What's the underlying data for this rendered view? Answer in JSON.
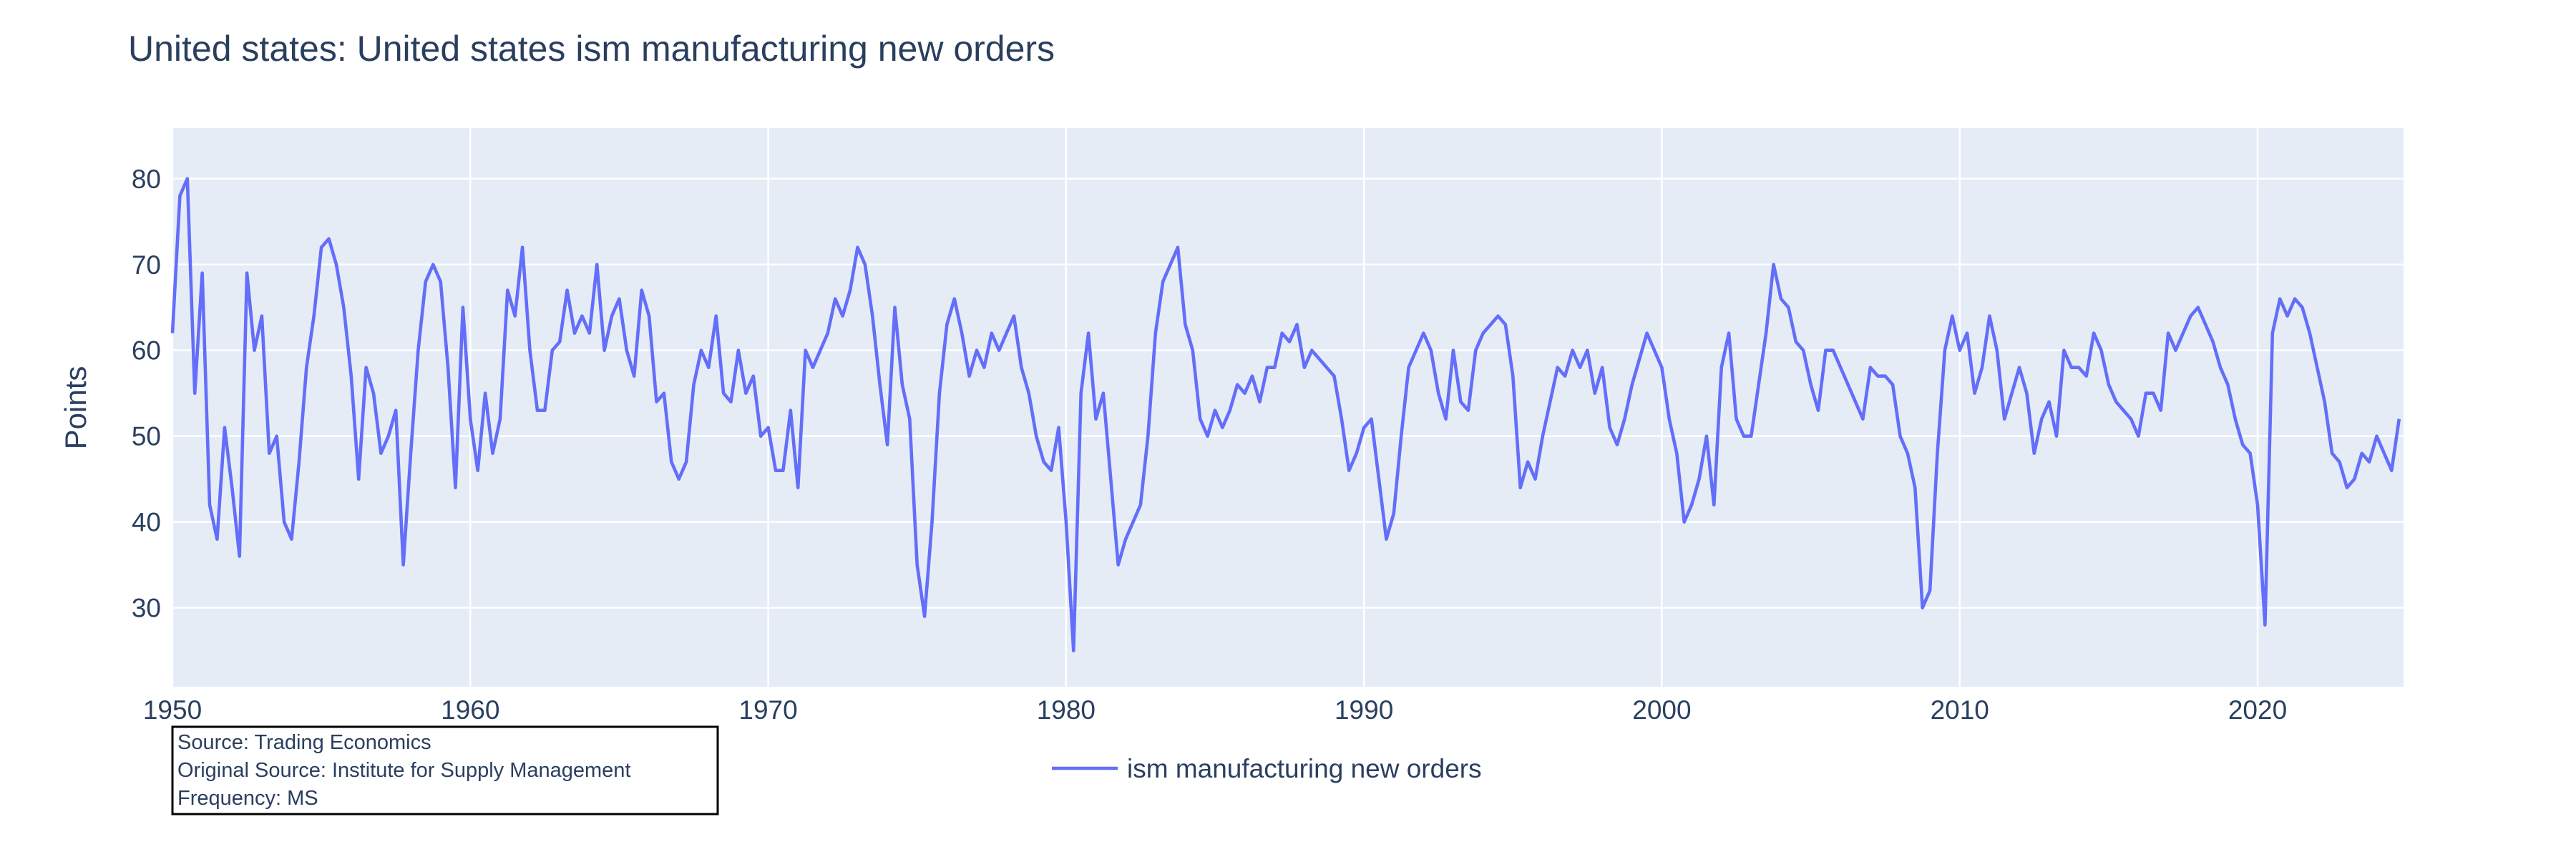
{
  "chart_data": {
    "type": "line",
    "title": "United states: United states ism manufacturing new orders",
    "y_label": "Points",
    "source_note": [
      "Source: Trading Economics",
      "Original Source: Institute for Supply Management",
      "Frequency: MS"
    ],
    "xlim": [
      1950,
      2024.9
    ],
    "ylim": [
      20.8,
      85.9
    ],
    "xticks": [
      1950,
      1960,
      1970,
      1980,
      1990,
      2000,
      2010,
      2020
    ],
    "yticks": [
      30,
      40,
      50,
      60,
      70,
      80
    ],
    "grid": true,
    "legend": "bottom",
    "x": [
      1950,
      1950.25,
      1950.5,
      1950.75,
      1951,
      1951.25,
      1951.5,
      1951.75,
      1952,
      1952.25,
      1952.5,
      1952.75,
      1953,
      1953.25,
      1953.5,
      1953.75,
      1954,
      1954.25,
      1954.5,
      1954.75,
      1955,
      1955.25,
      1955.5,
      1955.75,
      1956,
      1956.25,
      1956.5,
      1956.75,
      1957,
      1957.25,
      1957.5,
      1957.75,
      1958,
      1958.25,
      1958.5,
      1958.75,
      1959,
      1959.25,
      1959.5,
      1959.75,
      1960,
      1960.25,
      1960.5,
      1960.75,
      1961,
      1961.25,
      1961.5,
      1961.75,
      1962,
      1962.25,
      1962.5,
      1962.75,
      1963,
      1963.25,
      1963.5,
      1963.75,
      1964,
      1964.25,
      1964.5,
      1964.75,
      1965,
      1965.25,
      1965.5,
      1965.75,
      1966,
      1966.25,
      1966.5,
      1966.75,
      1967,
      1967.25,
      1967.5,
      1967.75,
      1968,
      1968.25,
      1968.5,
      1968.75,
      1969,
      1969.25,
      1969.5,
      1969.75,
      1970,
      1970.25,
      1970.5,
      1970.75,
      1971,
      1971.25,
      1971.5,
      1971.75,
      1972,
      1972.25,
      1972.5,
      1972.75,
      1973,
      1973.25,
      1973.5,
      1973.75,
      1974,
      1974.25,
      1974.5,
      1974.75,
      1975,
      1975.25,
      1975.5,
      1975.75,
      1976,
      1976.25,
      1976.5,
      1976.75,
      1977,
      1977.25,
      1977.5,
      1977.75,
      1978,
      1978.25,
      1978.5,
      1978.75,
      1979,
      1979.25,
      1979.5,
      1979.75,
      1980,
      1980.25,
      1980.5,
      1980.75,
      1981,
      1981.25,
      1981.5,
      1981.75,
      1982,
      1982.25,
      1982.5,
      1982.75,
      1983,
      1983.25,
      1983.5,
      1983.75,
      1984,
      1984.25,
      1984.5,
      1984.75,
      1985,
      1985.25,
      1985.5,
      1985.75,
      1986,
      1986.25,
      1986.5,
      1986.75,
      1987,
      1987.25,
      1987.5,
      1987.75,
      1988,
      1988.25,
      1988.5,
      1988.75,
      1989,
      1989.25,
      1989.5,
      1989.75,
      1990,
      1990.25,
      1990.5,
      1990.75,
      1991,
      1991.25,
      1991.5,
      1991.75,
      1992,
      1992.25,
      1992.5,
      1992.75,
      1993,
      1993.25,
      1993.5,
      1993.75,
      1994,
      1994.25,
      1994.5,
      1994.75,
      1995,
      1995.25,
      1995.5,
      1995.75,
      1996,
      1996.25,
      1996.5,
      1996.75,
      1997,
      1997.25,
      1997.5,
      1997.75,
      1998,
      1998.25,
      1998.5,
      1998.75,
      1999,
      1999.25,
      1999.5,
      1999.75,
      2000,
      2000.25,
      2000.5,
      2000.75,
      2001,
      2001.25,
      2001.5,
      2001.75,
      2002,
      2002.25,
      2002.5,
      2002.75,
      2003,
      2003.25,
      2003.5,
      2003.75,
      2004,
      2004.25,
      2004.5,
      2004.75,
      2005,
      2005.25,
      2005.5,
      2005.75,
      2006,
      2006.25,
      2006.5,
      2006.75,
      2007,
      2007.25,
      2007.5,
      2007.75,
      2008,
      2008.25,
      2008.5,
      2008.75,
      2009,
      2009.25,
      2009.5,
      2009.75,
      2010,
      2010.25,
      2010.5,
      2010.75,
      2011,
      2011.25,
      2011.5,
      2011.75,
      2012,
      2012.25,
      2012.5,
      2012.75,
      2013,
      2013.25,
      2013.5,
      2013.75,
      2014,
      2014.25,
      2014.5,
      2014.75,
      2015,
      2015.25,
      2015.5,
      2015.75,
      2016,
      2016.25,
      2016.5,
      2016.75,
      2017,
      2017.25,
      2017.5,
      2017.75,
      2018,
      2018.25,
      2018.5,
      2018.75,
      2019,
      2019.25,
      2019.5,
      2019.75,
      2020,
      2020.25,
      2020.5,
      2020.75,
      2021,
      2021.25,
      2021.5,
      2021.75,
      2022,
      2022.25,
      2022.5,
      2022.75,
      2023,
      2023.25,
      2023.5,
      2023.75,
      2024,
      2024.25,
      2024.5,
      2024.75
    ],
    "series": [
      {
        "name": "ism manufacturing new orders",
        "color": "#636efa",
        "values": [
          62,
          78,
          80,
          55,
          69,
          42,
          38,
          51,
          44,
          36,
          69,
          60,
          64,
          48,
          50,
          40,
          38,
          47,
          58,
          64,
          72,
          73,
          70,
          65,
          57,
          45,
          58,
          55,
          48,
          50,
          53,
          35,
          48,
          60,
          68,
          70,
          68,
          58,
          44,
          65,
          52,
          46,
          55,
          48,
          52,
          67,
          64,
          72,
          60,
          53,
          53,
          60,
          61,
          67,
          62,
          64,
          62,
          70,
          60,
          64,
          66,
          60,
          57,
          67,
          64,
          54,
          55,
          47,
          45,
          47,
          56,
          60,
          58,
          64,
          55,
          54,
          60,
          55,
          57,
          50,
          51,
          46,
          46,
          53,
          44,
          60,
          58,
          60,
          62,
          66,
          64,
          67,
          72,
          70,
          64,
          56,
          49,
          65,
          56,
          52,
          35,
          29,
          40,
          55,
          63,
          66,
          62,
          57,
          60,
          58,
          62,
          60,
          62,
          64,
          58,
          55,
          50,
          47,
          46,
          51,
          40,
          25,
          55,
          62,
          52,
          55,
          45,
          35,
          38,
          40,
          42,
          50,
          62,
          68,
          70,
          72,
          63,
          60,
          52,
          50,
          53,
          51,
          53,
          56,
          55,
          57,
          54,
          58,
          58,
          62,
          61,
          63,
          58,
          60,
          59,
          58,
          57,
          52,
          46,
          48,
          51,
          52,
          45,
          38,
          41,
          50,
          58,
          60,
          62,
          60,
          55,
          52,
          60,
          54,
          53,
          60,
          62,
          63,
          64,
          63,
          57,
          44,
          47,
          45,
          50,
          54,
          58,
          57,
          60,
          58,
          60,
          55,
          58,
          51,
          49,
          52,
          56,
          59,
          62,
          60,
          58,
          52,
          48,
          40,
          42,
          45,
          50,
          42,
          58,
          62,
          52,
          50,
          50,
          56,
          62,
          70,
          66,
          65,
          61,
          60,
          56,
          53,
          60,
          60,
          58,
          56,
          54,
          52,
          58,
          57,
          57,
          56,
          50,
          48,
          44,
          30,
          32,
          48,
          60,
          64,
          60,
          62,
          55,
          58,
          64,
          60,
          52,
          55,
          58,
          55,
          48,
          52,
          54,
          50,
          60,
          58,
          58,
          57,
          62,
          60,
          56,
          54,
          53,
          52,
          50,
          55,
          55,
          53,
          62,
          60,
          62,
          64,
          65,
          63,
          61,
          58,
          56,
          52,
          49,
          48,
          42,
          28,
          62,
          66,
          64,
          66,
          65,
          62,
          58,
          54,
          48,
          47,
          44,
          45,
          48,
          47,
          50,
          48,
          46,
          52
        ]
      }
    ]
  }
}
